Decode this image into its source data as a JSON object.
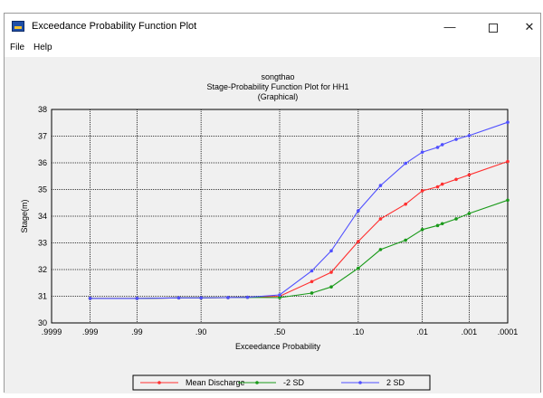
{
  "window": {
    "title": "Exceedance Probability Function Plot",
    "minimize": "—",
    "close": "✕"
  },
  "menu": {
    "file": "File",
    "help": "Help"
  },
  "colors": {
    "mean": "#ff3030",
    "minus2sd": "#1a9a1a",
    "plus2sd": "#5050ff",
    "grid": "#000000"
  },
  "chart_data": {
    "type": "line",
    "title": "songthao",
    "subtitle": "Stage-Probability Function Plot for HH1",
    "subtitle2": "(Graphical)",
    "xlabel": "Exceedance Probability",
    "ylabel": "Stage(m)",
    "x_scale": "normal-probability",
    "ylim": [
      30,
      38
    ],
    "yticks": [
      "30",
      "31",
      "32",
      "33",
      "34",
      "35",
      "36",
      "37",
      "38"
    ],
    "xticks": [
      {
        "p": 0.9999,
        "label": ".9999"
      },
      {
        "p": 0.999,
        "label": ".999"
      },
      {
        "p": 0.99,
        "label": ".99"
      },
      {
        "p": 0.9,
        "label": ".90"
      },
      {
        "p": 0.5,
        "label": ".50"
      },
      {
        "p": 0.1,
        "label": ".10"
      },
      {
        "p": 0.01,
        "label": ".01"
      },
      {
        "p": 0.001,
        "label": ".001"
      },
      {
        "p": 0.0001,
        "label": ".0001"
      }
    ],
    "grid": true,
    "legend_position": "bottom",
    "series": [
      {
        "name": "Mean Discharge",
        "color_key": "mean",
        "marker": "circle",
        "points": [
          [
            0.999,
            30.92
          ],
          [
            0.99,
            30.92
          ],
          [
            0.95,
            30.94
          ],
          [
            0.9,
            30.94
          ],
          [
            0.8,
            30.95
          ],
          [
            0.7,
            30.96
          ],
          [
            0.5,
            31.0
          ],
          [
            0.3,
            31.55
          ],
          [
            0.2,
            31.9
          ],
          [
            0.1,
            33.05
          ],
          [
            0.05,
            33.9
          ],
          [
            0.02,
            34.45
          ],
          [
            0.01,
            34.95
          ],
          [
            0.005,
            35.1
          ],
          [
            0.004,
            35.2
          ],
          [
            0.002,
            35.38
          ],
          [
            0.001,
            35.55
          ],
          [
            0.0001,
            36.05
          ]
        ]
      },
      {
        "name": "-2 SD",
        "color_key": "minus2sd",
        "marker": "circle",
        "points": [
          [
            0.999,
            30.92
          ],
          [
            0.99,
            30.92
          ],
          [
            0.95,
            30.94
          ],
          [
            0.9,
            30.94
          ],
          [
            0.8,
            30.95
          ],
          [
            0.7,
            30.96
          ],
          [
            0.5,
            30.95
          ],
          [
            0.3,
            31.12
          ],
          [
            0.2,
            31.35
          ],
          [
            0.1,
            32.05
          ],
          [
            0.05,
            32.75
          ],
          [
            0.02,
            33.1
          ],
          [
            0.01,
            33.5
          ],
          [
            0.005,
            33.65
          ],
          [
            0.004,
            33.72
          ],
          [
            0.002,
            33.9
          ],
          [
            0.001,
            34.1
          ],
          [
            0.0001,
            34.6
          ]
        ]
      },
      {
        "name": "2 SD",
        "color_key": "plus2sd",
        "marker": "circle",
        "points": [
          [
            0.999,
            30.92
          ],
          [
            0.99,
            30.92
          ],
          [
            0.95,
            30.94
          ],
          [
            0.9,
            30.94
          ],
          [
            0.8,
            30.95
          ],
          [
            0.7,
            30.96
          ],
          [
            0.5,
            31.05
          ],
          [
            0.3,
            31.95
          ],
          [
            0.2,
            32.7
          ],
          [
            0.1,
            34.2
          ],
          [
            0.05,
            35.15
          ],
          [
            0.02,
            35.98
          ],
          [
            0.01,
            36.4
          ],
          [
            0.005,
            36.58
          ],
          [
            0.004,
            36.68
          ],
          [
            0.002,
            36.88
          ],
          [
            0.001,
            37.02
          ],
          [
            0.0001,
            37.52
          ]
        ]
      }
    ]
  }
}
